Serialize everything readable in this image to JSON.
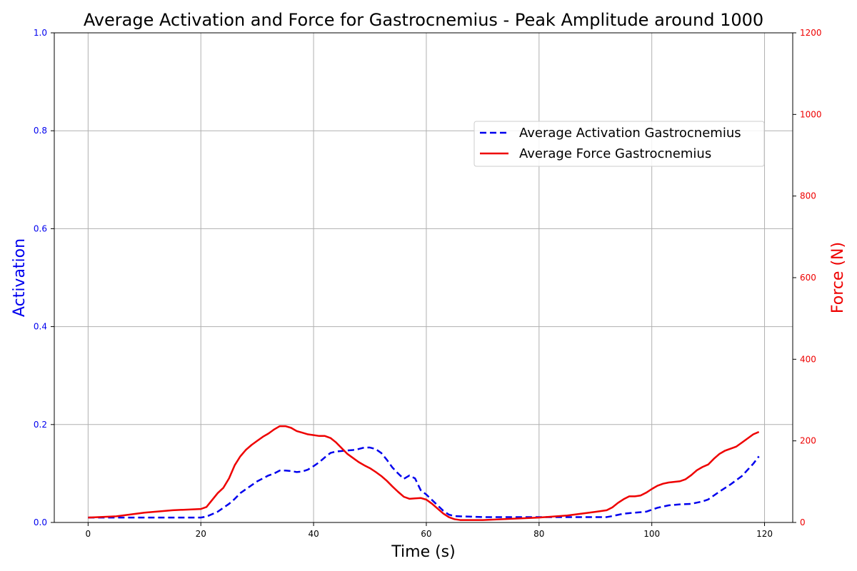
{
  "chart_data": {
    "type": "line",
    "title": "Average Activation and Force for Gastrocnemius - Peak Amplitude around 1000",
    "xlabel": "Time (s)",
    "ylabel_left": "Activation",
    "ylabel_right": "Force (N)",
    "xlim": [
      -6,
      125
    ],
    "ylim_left": [
      0,
      1
    ],
    "ylim_right": [
      0,
      1200
    ],
    "xticks": [
      0,
      20,
      40,
      60,
      80,
      100,
      120
    ],
    "yticks_left": [
      0.0,
      0.2,
      0.4,
      0.6,
      0.8,
      1.0
    ],
    "yticks_right": [
      0,
      200,
      400,
      600,
      800,
      1000,
      1200
    ],
    "grid": true,
    "legend_position": "upper-right",
    "colors": {
      "activation": "#0000ee",
      "force": "#ee0000",
      "grid": "#b0b0b0"
    },
    "series": [
      {
        "name": "Average Activation Gastrocnemius",
        "axis": "left",
        "style": "dashed",
        "points": [
          [
            0,
            0.01
          ],
          [
            5,
            0.01
          ],
          [
            10,
            0.01
          ],
          [
            15,
            0.01
          ],
          [
            20,
            0.01
          ],
          [
            21,
            0.012
          ],
          [
            22,
            0.017
          ],
          [
            23,
            0.022
          ],
          [
            24,
            0.03
          ],
          [
            25,
            0.038
          ],
          [
            26,
            0.048
          ],
          [
            27,
            0.06
          ],
          [
            28,
            0.068
          ],
          [
            29,
            0.076
          ],
          [
            30,
            0.084
          ],
          [
            31,
            0.09
          ],
          [
            32,
            0.096
          ],
          [
            33,
            0.1
          ],
          [
            34,
            0.106
          ],
          [
            35,
            0.106
          ],
          [
            36,
            0.105
          ],
          [
            37,
            0.103
          ],
          [
            38,
            0.104
          ],
          [
            39,
            0.108
          ],
          [
            40,
            0.115
          ],
          [
            41,
            0.123
          ],
          [
            42,
            0.133
          ],
          [
            43,
            0.142
          ],
          [
            44,
            0.145
          ],
          [
            45,
            0.146
          ],
          [
            46,
            0.147
          ],
          [
            47,
            0.148
          ],
          [
            48,
            0.15
          ],
          [
            49,
            0.153
          ],
          [
            50,
            0.153
          ],
          [
            51,
            0.15
          ],
          [
            52,
            0.142
          ],
          [
            53,
            0.128
          ],
          [
            54,
            0.112
          ],
          [
            55,
            0.1
          ],
          [
            56,
            0.089
          ],
          [
            57,
            0.096
          ],
          [
            58,
            0.09
          ],
          [
            59,
            0.066
          ],
          [
            60,
            0.057
          ],
          [
            61,
            0.046
          ],
          [
            62,
            0.035
          ],
          [
            63,
            0.024
          ],
          [
            64,
            0.016
          ],
          [
            65,
            0.013
          ],
          [
            70,
            0.011
          ],
          [
            80,
            0.011
          ],
          [
            90,
            0.011
          ],
          [
            92,
            0.011
          ],
          [
            93,
            0.013
          ],
          [
            95,
            0.018
          ],
          [
            97,
            0.02
          ],
          [
            99,
            0.022
          ],
          [
            101,
            0.03
          ],
          [
            103,
            0.035
          ],
          [
            105,
            0.037
          ],
          [
            107,
            0.038
          ],
          [
            109,
            0.043
          ],
          [
            110,
            0.047
          ],
          [
            112,
            0.063
          ],
          [
            114,
            0.078
          ],
          [
            116,
            0.095
          ],
          [
            118,
            0.12
          ],
          [
            119,
            0.135
          ]
        ]
      },
      {
        "name": "Average Force Gastrocnemius",
        "axis": "right",
        "style": "solid",
        "points": [
          [
            0,
            12
          ],
          [
            5,
            15
          ],
          [
            10,
            24
          ],
          [
            15,
            30
          ],
          [
            20,
            33
          ],
          [
            21,
            38
          ],
          [
            22,
            55
          ],
          [
            23,
            72
          ],
          [
            24,
            85
          ],
          [
            25,
            108
          ],
          [
            26,
            140
          ],
          [
            27,
            162
          ],
          [
            28,
            178
          ],
          [
            29,
            190
          ],
          [
            30,
            200
          ],
          [
            31,
            210
          ],
          [
            32,
            218
          ],
          [
            33,
            228
          ],
          [
            34,
            236
          ],
          [
            35,
            236
          ],
          [
            36,
            232
          ],
          [
            37,
            224
          ],
          [
            38,
            220
          ],
          [
            39,
            216
          ],
          [
            40,
            214
          ],
          [
            41,
            212
          ],
          [
            42,
            212
          ],
          [
            43,
            207
          ],
          [
            44,
            196
          ],
          [
            45,
            182
          ],
          [
            46,
            168
          ],
          [
            47,
            158
          ],
          [
            48,
            148
          ],
          [
            49,
            140
          ],
          [
            50,
            133
          ],
          [
            51,
            124
          ],
          [
            52,
            114
          ],
          [
            53,
            102
          ],
          [
            54,
            88
          ],
          [
            55,
            75
          ],
          [
            56,
            63
          ],
          [
            57,
            58
          ],
          [
            58,
            59
          ],
          [
            59,
            60
          ],
          [
            60,
            56
          ],
          [
            61,
            46
          ],
          [
            62,
            34
          ],
          [
            63,
            22
          ],
          [
            64,
            13
          ],
          [
            65,
            8
          ],
          [
            66,
            6
          ],
          [
            70,
            6
          ],
          [
            80,
            12
          ],
          [
            85,
            17
          ],
          [
            90,
            26
          ],
          [
            92,
            30
          ],
          [
            93,
            37
          ],
          [
            94,
            48
          ],
          [
            95,
            57
          ],
          [
            96,
            64
          ],
          [
            97,
            64
          ],
          [
            98,
            66
          ],
          [
            99,
            73
          ],
          [
            100,
            82
          ],
          [
            101,
            90
          ],
          [
            102,
            95
          ],
          [
            103,
            98
          ],
          [
            105,
            101
          ],
          [
            106,
            106
          ],
          [
            107,
            116
          ],
          [
            108,
            128
          ],
          [
            109,
            136
          ],
          [
            110,
            142
          ],
          [
            111,
            156
          ],
          [
            112,
            168
          ],
          [
            113,
            176
          ],
          [
            114,
            181
          ],
          [
            115,
            186
          ],
          [
            116,
            196
          ],
          [
            117,
            206
          ],
          [
            118,
            216
          ],
          [
            119,
            222
          ]
        ]
      }
    ]
  }
}
